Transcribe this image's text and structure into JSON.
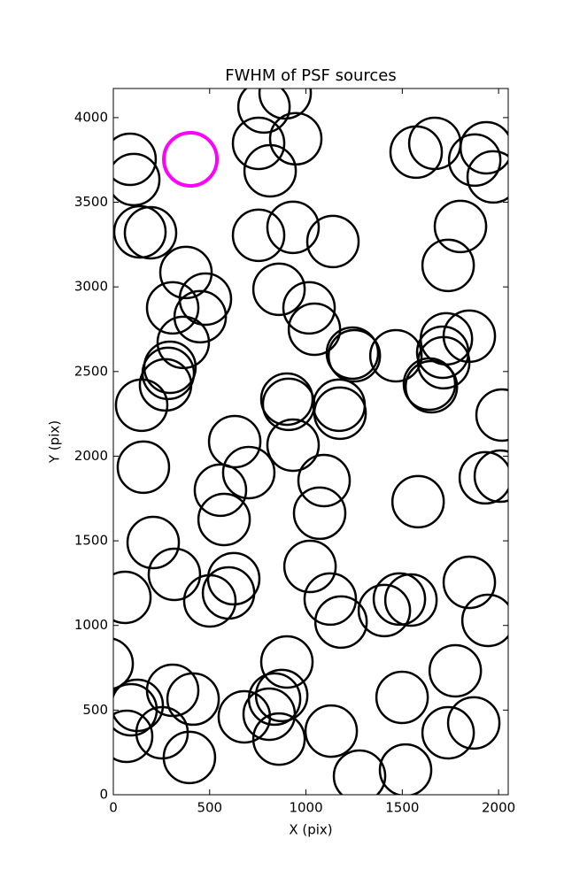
{
  "chart_data": {
    "type": "scatter",
    "title": "FWHM of PSF sources",
    "x_label": "X (pix)",
    "y_label": "Y (pix)",
    "xlim": [
      0,
      2050
    ],
    "ylim": [
      0,
      4172
    ],
    "xticks": [
      0,
      500,
      1000,
      1500,
      2000
    ],
    "yticks": [
      0,
      500,
      1000,
      1500,
      2000,
      2500,
      3000,
      3500,
      4000
    ],
    "series": [
      {
        "color": "#000000",
        "x": [
          87,
          106,
          138,
          193,
          377,
          478,
          308,
          451,
          363,
          294,
          285,
          271,
          147,
          156,
          207,
          317,
          60,
          501,
          598,
          625,
          630,
          703,
          556,
          575,
          754,
          754,
          782,
          814,
          892,
          947,
          933,
          1140,
          860,
          1016,
          1044,
          901,
          910,
          933,
          1094,
          1071,
          1021,
          1126,
          1182,
          1172,
          1177,
          1241,
          1251,
          1467,
          1572,
          1669,
          1802,
          1738,
          1710,
          1729,
          1715,
          1641,
          1651,
          1848,
          1876,
          1936,
          1972,
          2018,
          1931,
          2009,
          1582,
          1848,
          1945,
          1775,
          1738,
          1871,
          1499,
          1517,
          1407,
          1485,
          1545,
          1278,
          1131,
          901,
          874,
          837,
          809,
          860,
          680,
          395,
          253,
          414,
          308,
          124,
          92,
          69,
          -32
        ],
        "y": [
          3754,
          3634,
          3325,
          3320,
          3085,
          2928,
          2876,
          2824,
          2672,
          2525,
          2489,
          2421,
          2301,
          1935,
          1490,
          1302,
          1166,
          1145,
          1192,
          1276,
          2086,
          1903,
          1799,
          1626,
          3305,
          3848,
          4063,
          3686,
          4146,
          3875,
          3352,
          3268,
          2986,
          2876,
          2750,
          2337,
          2306,
          2065,
          1856,
          1663,
          1349,
          1156,
          1020,
          2301,
          2254,
          2609,
          2593,
          2593,
          3796,
          3848,
          3357,
          3127,
          2614,
          2693,
          2552,
          2426,
          2410,
          2709,
          3749,
          3822,
          3650,
          2243,
          1872,
          1882,
          1731,
          1255,
          1030,
          732,
          366,
          424,
          575,
          146,
          1088,
          1156,
          1150,
          110,
          376,
          784,
          586,
          565,
          476,
          329,
          460,
          220,
          366,
          565,
          617,
          528,
          502,
          345,
          774
        ]
      },
      {
        "color": "#ff00ff",
        "x": [
          400
        ],
        "y": [
          3754
        ]
      }
    ]
  }
}
